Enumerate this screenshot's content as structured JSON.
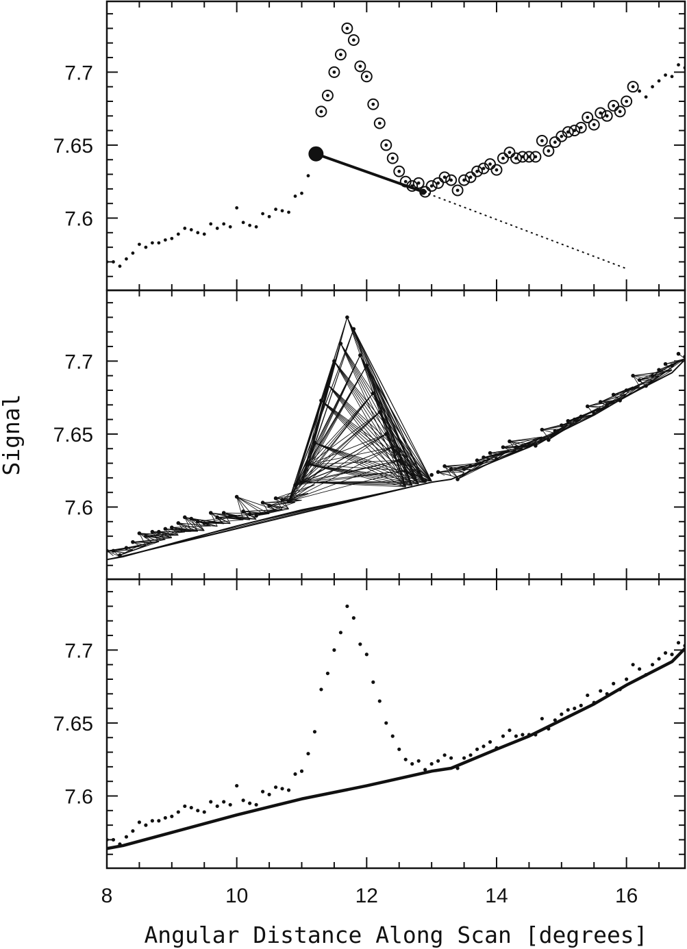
{
  "chart_data": {
    "type": "scatter",
    "xlabel": "Angular Distance Along Scan [degrees]",
    "ylabel": "Signal",
    "xlim": [
      8,
      16.9
    ],
    "x_ticks": [
      8,
      10,
      12,
      14,
      16
    ],
    "x_tick_labels": [
      "8",
      "10",
      "12",
      "14",
      "16"
    ],
    "y_ticks": [
      7.6,
      7.65,
      7.7
    ],
    "y_tick_labels": [
      "7.6",
      "7.65",
      "7.7"
    ],
    "grid": false,
    "panels": [
      {
        "id": "top",
        "ylim": [
          7.5505,
          7.7485
        ],
        "elements": [
          "signal points",
          "circled candidate points",
          "test point",
          "connecting line",
          "dotted extrapolation"
        ],
        "test_point": [
          11.22,
          7.644
        ],
        "end_point": [
          12.87,
          7.618
        ],
        "extrapolation_end": [
          16.02,
          7.565
        ]
      },
      {
        "id": "middle",
        "ylim": [
          7.5505,
          7.7485
        ],
        "elements": [
          "signal points",
          "connecting chords",
          "lower envelope"
        ]
      },
      {
        "id": "bottom",
        "ylim": [
          7.5505,
          7.7485
        ],
        "elements": [
          "signal points",
          "fitted baseline"
        ]
      }
    ],
    "circled_range": [
      11.3,
      16.1
    ],
    "series": [
      {
        "x": [
          8.0,
          8.1,
          8.2,
          8.3,
          8.4,
          8.5,
          8.6,
          8.7,
          8.8,
          8.9,
          9.0,
          9.1,
          9.2,
          9.3,
          9.4,
          9.5,
          9.6,
          9.7,
          9.8,
          9.9,
          10.0,
          10.1,
          10.2,
          10.3,
          10.4,
          10.5,
          10.6,
          10.7,
          10.8,
          10.9,
          11.0,
          11.1,
          11.2,
          11.3,
          11.4,
          11.5,
          11.6,
          11.7,
          11.8,
          11.9,
          12.0,
          12.1,
          12.2,
          12.3,
          12.4,
          12.5,
          12.6,
          12.7,
          12.8,
          12.9,
          13.0,
          13.1,
          13.2,
          13.3,
          13.4,
          13.5,
          13.6,
          13.7,
          13.8,
          13.9,
          14.0,
          14.1,
          14.2,
          14.3,
          14.4,
          14.5,
          14.6,
          14.7,
          14.8,
          14.9,
          15.0,
          15.1,
          15.2,
          15.3,
          15.4,
          15.5,
          15.6,
          15.7,
          15.8,
          15.9,
          16.0,
          16.1,
          16.2,
          16.3,
          16.4,
          16.5,
          16.6,
          16.7,
          16.8,
          16.9
        ],
        "y": [
          7.57,
          7.57,
          7.567,
          7.572,
          7.576,
          7.582,
          7.58,
          7.583,
          7.583,
          7.585,
          7.586,
          7.589,
          7.593,
          7.592,
          7.59,
          7.589,
          7.596,
          7.593,
          7.596,
          7.594,
          7.607,
          7.597,
          7.595,
          7.594,
          7.603,
          7.601,
          7.606,
          7.605,
          7.604,
          7.615,
          7.617,
          7.629,
          7.644,
          7.673,
          7.684,
          7.7,
          7.712,
          7.73,
          7.722,
          7.704,
          7.697,
          7.678,
          7.665,
          7.65,
          7.641,
          7.632,
          7.625,
          7.622,
          7.624,
          7.618,
          7.622,
          7.624,
          7.628,
          7.626,
          7.619,
          7.626,
          7.628,
          7.632,
          7.634,
          7.637,
          7.633,
          7.641,
          7.645,
          7.641,
          7.642,
          7.642,
          7.642,
          7.653,
          7.646,
          7.652,
          7.656,
          7.659,
          7.66,
          7.662,
          7.669,
          7.664,
          7.672,
          7.67,
          7.677,
          7.673,
          7.68,
          7.69,
          7.687,
          7.683,
          7.69,
          7.694,
          7.698,
          7.697,
          7.705,
          7.703
        ]
      },
      {
        "name": "baseline",
        "x": [
          8.0,
          8.25,
          9.0,
          10.0,
          11.0,
          12.0,
          13.0,
          13.3,
          14.0,
          14.5,
          15.0,
          15.5,
          16.0,
          16.7,
          16.9
        ],
        "y": [
          7.564,
          7.566,
          7.575,
          7.587,
          7.598,
          7.607,
          7.617,
          7.619,
          7.632,
          7.641,
          7.652,
          7.663,
          7.676,
          7.692,
          7.701
        ]
      }
    ]
  }
}
